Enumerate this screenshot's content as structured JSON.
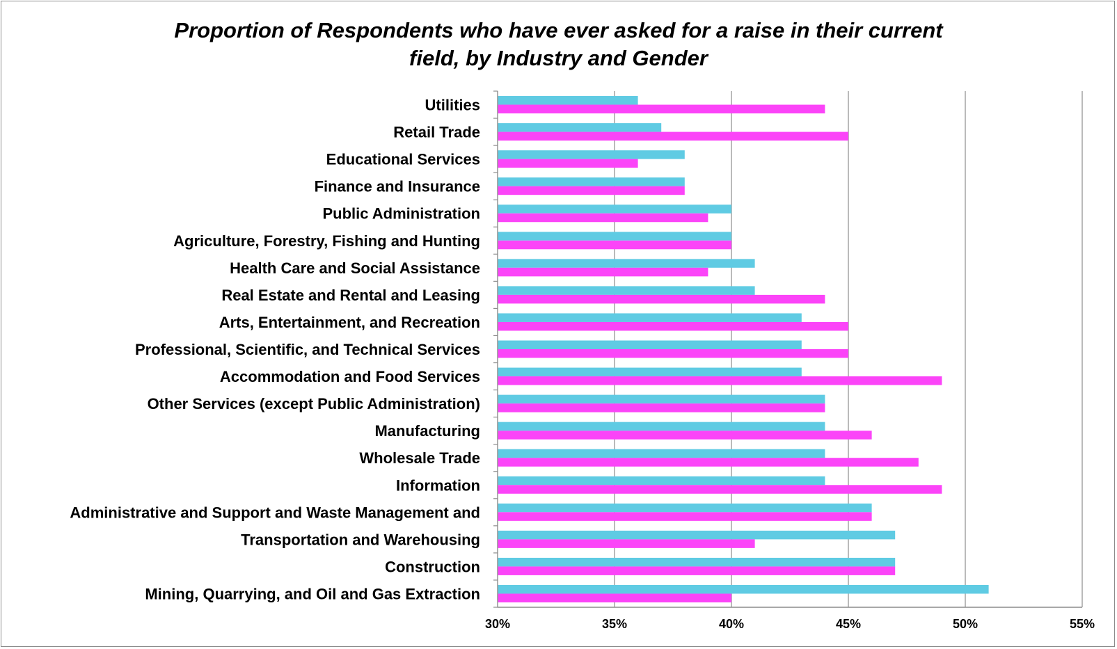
{
  "chart_data": {
    "type": "bar",
    "orientation": "horizontal",
    "title_lines": [
      "Proportion of Respondents who have ever asked for a raise in their current",
      "field, by Industry and Gender"
    ],
    "categories": [
      "Utilities",
      "Retail Trade",
      "Educational Services",
      "Finance and Insurance",
      "Public Administration",
      "Agriculture, Forestry, Fishing and Hunting",
      "Health Care and Social Assistance",
      "Real Estate and Rental and Leasing",
      "Arts, Entertainment, and Recreation",
      "Professional, Scientific, and Technical Services",
      "Accommodation and Food Services",
      "Other Services (except Public Administration)",
      "Manufacturing",
      "Wholesale Trade",
      "Information",
      "Administrative and Support and Waste Management and",
      "Transportation and Warehousing",
      "Construction",
      "Mining, Quarrying, and Oil and Gas Extraction"
    ],
    "series": [
      {
        "color": "#5fcbe3",
        "values": [
          36,
          37,
          38,
          38,
          40,
          40,
          41,
          41,
          43,
          43,
          43,
          44,
          44,
          44,
          44,
          46,
          47,
          47,
          51
        ]
      },
      {
        "color": "#fb44f8",
        "values": [
          44,
          45,
          36,
          38,
          39,
          40,
          39,
          44,
          45,
          45,
          49,
          44,
          46,
          48,
          49,
          46,
          41,
          47,
          40
        ]
      }
    ],
    "x_ticks": [
      "30%",
      "35%",
      "40%",
      "45%",
      "50%",
      "55%"
    ],
    "xlim": [
      30,
      55
    ],
    "value_unit": "%",
    "grid": true,
    "legend": "none"
  }
}
